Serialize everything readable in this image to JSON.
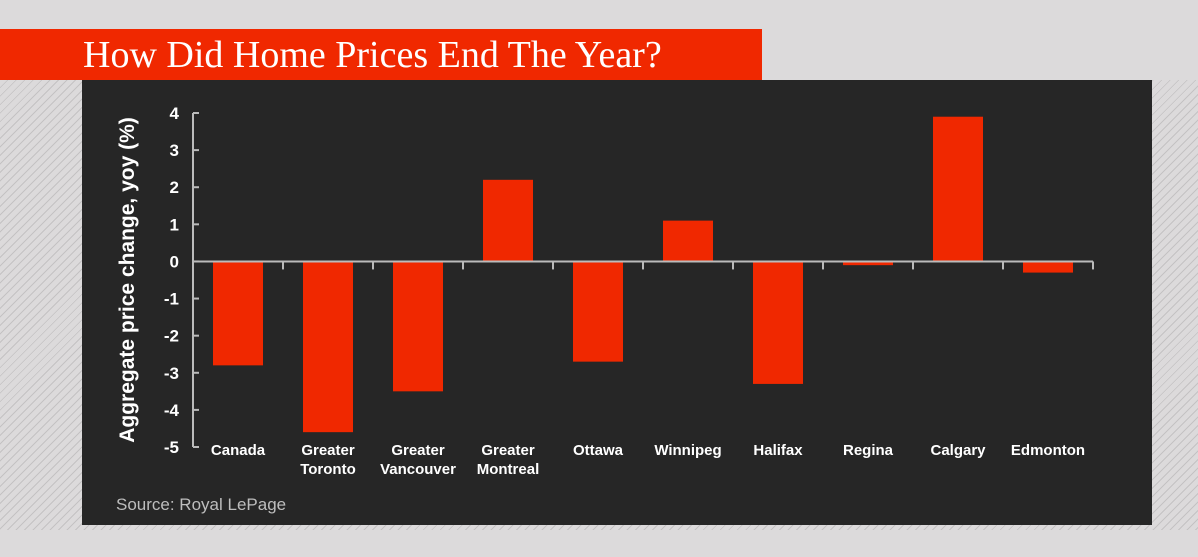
{
  "title": "How Did Home Prices End The Year?",
  "source": "Source: Royal LePage",
  "colors": {
    "bar": "#f02800",
    "panel": "#262626",
    "title_band": "#f02800"
  },
  "chart_data": {
    "type": "bar",
    "title": "How Did Home Prices End The Year?",
    "xlabel": "",
    "ylabel": "Aggregate price change, yoy (%)",
    "ylim": [
      -5,
      4
    ],
    "yticks": [
      "4",
      "3",
      "2",
      "1",
      "0",
      "-1",
      "-2",
      "-3",
      "-4",
      "-5"
    ],
    "grid": false,
    "categories": [
      [
        "Canada"
      ],
      [
        "Greater",
        "Toronto"
      ],
      [
        "Greater",
        "Vancouver"
      ],
      [
        "Greater",
        "Montreal"
      ],
      [
        "Ottawa"
      ],
      [
        "Winnipeg"
      ],
      [
        "Halifax"
      ],
      [
        "Regina"
      ],
      [
        "Calgary"
      ],
      [
        "Edmonton"
      ]
    ],
    "values": [
      -2.8,
      -4.6,
      -3.5,
      2.2,
      -2.7,
      1.1,
      -3.3,
      -0.1,
      3.9,
      -0.3
    ]
  }
}
